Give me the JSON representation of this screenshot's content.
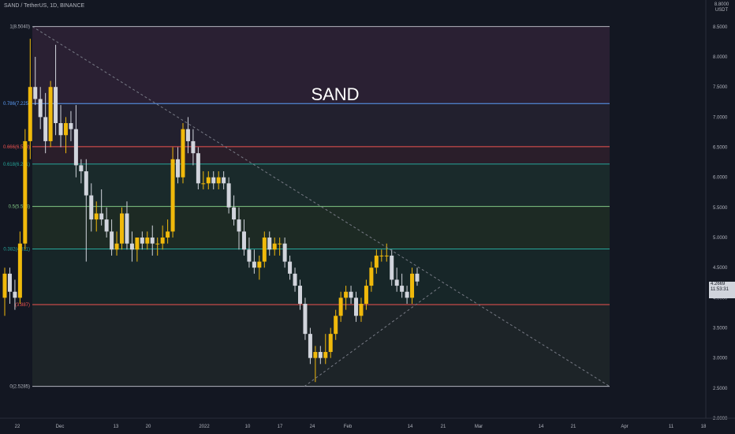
{
  "header": {
    "symbol": "SAND / TetherUS, 1D, BINANCE"
  },
  "annotation": {
    "text": "SAND"
  },
  "price_scale": {
    "currency": "USDT",
    "badge_top": "8.8000",
    "ticks": [
      "8.5000",
      "8.0000",
      "7.5000",
      "7.0000",
      "6.5000",
      "6.0000",
      "5.5000",
      "5.0000",
      "4.5000",
      "4.0000",
      "3.5000",
      "3.0000",
      "2.5000",
      "2.0000"
    ],
    "last_price": "4.2669",
    "countdown": "11:53:31"
  },
  "time_scale": {
    "ticks": [
      "22",
      "Dec",
      "13",
      "20",
      "2022",
      "10",
      "17",
      "24",
      "Feb",
      "14",
      "21",
      "Mar",
      "14",
      "21",
      "Apr",
      "11",
      "18"
    ]
  },
  "fib_levels": [
    {
      "label": "1(8.5040)",
      "value": 8.504,
      "color": "#b2b5be"
    },
    {
      "label": "0.786(7.225)",
      "value": 7.225,
      "color": "#5b9cf6"
    },
    {
      "label": "0.666(6.508)",
      "value": 6.508,
      "color": "#ef5350"
    },
    {
      "label": "0.618(6.221)",
      "value": 6.221,
      "color": "#26a69a"
    },
    {
      "label": "0.5(5.516)",
      "value": 5.516,
      "color": "#81c784"
    },
    {
      "label": "0.382(4.811)",
      "value": 4.811,
      "color": "#26a69a"
    },
    {
      "label": "(3.887)",
      "value": 3.887,
      "color": "#ef5350"
    },
    {
      "label": "0(2.5285)",
      "value": 2.5285,
      "color": "#b2b5be"
    }
  ],
  "colors": {
    "background": "#131722",
    "up_candle": "#f0b90b",
    "down_candle": "#d1d4dc",
    "trendline": "#787b86"
  },
  "chart_data": {
    "type": "candlestick",
    "title": "SAND / TetherUS, 1D, BINANCE",
    "ylim": [
      2.0,
      8.8
    ],
    "y_scale": "linear",
    "candles": [
      {
        "o": 4.0,
        "h": 4.5,
        "l": 3.7,
        "c": 4.4
      },
      {
        "o": 4.4,
        "h": 4.5,
        "l": 3.9,
        "c": 4.1
      },
      {
        "o": 4.1,
        "h": 4.3,
        "l": 3.8,
        "c": 4.0
      },
      {
        "o": 4.0,
        "h": 5.1,
        "l": 3.9,
        "c": 4.9
      },
      {
        "o": 4.9,
        "h": 6.8,
        "l": 4.8,
        "c": 6.6
      },
      {
        "o": 6.6,
        "h": 8.3,
        "l": 6.3,
        "c": 7.5
      },
      {
        "o": 7.5,
        "h": 8.0,
        "l": 7.2,
        "c": 7.3
      },
      {
        "o": 7.3,
        "h": 7.5,
        "l": 6.8,
        "c": 7.0
      },
      {
        "o": 7.0,
        "h": 7.4,
        "l": 6.4,
        "c": 6.6
      },
      {
        "o": 6.6,
        "h": 7.6,
        "l": 6.5,
        "c": 7.5
      },
      {
        "o": 7.5,
        "h": 8.2,
        "l": 6.7,
        "c": 6.9
      },
      {
        "o": 6.9,
        "h": 7.2,
        "l": 6.5,
        "c": 6.7
      },
      {
        "o": 6.7,
        "h": 7.0,
        "l": 6.4,
        "c": 6.9
      },
      {
        "o": 6.9,
        "h": 7.1,
        "l": 6.6,
        "c": 6.8
      },
      {
        "o": 6.8,
        "h": 7.2,
        "l": 6.0,
        "c": 6.2
      },
      {
        "o": 6.2,
        "h": 6.3,
        "l": 5.9,
        "c": 6.1
      },
      {
        "o": 6.1,
        "h": 6.3,
        "l": 4.6,
        "c": 5.7
      },
      {
        "o": 5.7,
        "h": 5.9,
        "l": 5.1,
        "c": 5.3
      },
      {
        "o": 5.3,
        "h": 5.6,
        "l": 5.1,
        "c": 5.4
      },
      {
        "o": 5.4,
        "h": 5.8,
        "l": 5.2,
        "c": 5.3
      },
      {
        "o": 5.3,
        "h": 5.5,
        "l": 5.0,
        "c": 5.1
      },
      {
        "o": 5.1,
        "h": 5.3,
        "l": 4.7,
        "c": 4.8
      },
      {
        "o": 4.8,
        "h": 5.1,
        "l": 4.7,
        "c": 4.9
      },
      {
        "o": 4.9,
        "h": 5.5,
        "l": 4.8,
        "c": 5.4
      },
      {
        "o": 5.4,
        "h": 5.6,
        "l": 4.8,
        "c": 4.9
      },
      {
        "o": 4.9,
        "h": 5.1,
        "l": 4.6,
        "c": 4.8
      },
      {
        "o": 4.8,
        "h": 5.0,
        "l": 4.6,
        "c": 5.0
      },
      {
        "o": 5.0,
        "h": 5.1,
        "l": 4.8,
        "c": 4.9
      },
      {
        "o": 4.9,
        "h": 5.1,
        "l": 4.8,
        "c": 5.0
      },
      {
        "o": 5.0,
        "h": 5.2,
        "l": 4.7,
        "c": 4.9
      },
      {
        "o": 4.9,
        "h": 5.0,
        "l": 4.7,
        "c": 4.9
      },
      {
        "o": 4.9,
        "h": 5.2,
        "l": 4.8,
        "c": 5.0
      },
      {
        "o": 5.0,
        "h": 5.3,
        "l": 4.9,
        "c": 5.1
      },
      {
        "o": 5.1,
        "h": 6.5,
        "l": 5.0,
        "c": 6.3
      },
      {
        "o": 6.3,
        "h": 6.5,
        "l": 5.9,
        "c": 6.0
      },
      {
        "o": 6.0,
        "h": 6.9,
        "l": 5.9,
        "c": 6.8
      },
      {
        "o": 6.8,
        "h": 7.0,
        "l": 6.4,
        "c": 6.6
      },
      {
        "o": 6.6,
        "h": 6.8,
        "l": 6.2,
        "c": 6.4
      },
      {
        "o": 6.4,
        "h": 6.5,
        "l": 5.8,
        "c": 5.9
      },
      {
        "o": 5.9,
        "h": 6.1,
        "l": 5.8,
        "c": 5.9
      },
      {
        "o": 5.9,
        "h": 6.1,
        "l": 5.8,
        "c": 6.0
      },
      {
        "o": 6.0,
        "h": 6.1,
        "l": 5.8,
        "c": 5.9
      },
      {
        "o": 5.9,
        "h": 6.1,
        "l": 5.8,
        "c": 6.0
      },
      {
        "o": 6.0,
        "h": 6.1,
        "l": 5.8,
        "c": 5.9
      },
      {
        "o": 5.9,
        "h": 6.0,
        "l": 5.4,
        "c": 5.5
      },
      {
        "o": 5.5,
        "h": 5.7,
        "l": 5.2,
        "c": 5.3
      },
      {
        "o": 5.3,
        "h": 5.5,
        "l": 4.8,
        "c": 5.1
      },
      {
        "o": 5.1,
        "h": 5.3,
        "l": 4.7,
        "c": 4.8
      },
      {
        "o": 4.8,
        "h": 5.0,
        "l": 4.5,
        "c": 4.6
      },
      {
        "o": 4.6,
        "h": 4.8,
        "l": 4.4,
        "c": 4.5
      },
      {
        "o": 4.5,
        "h": 4.7,
        "l": 4.3,
        "c": 4.6
      },
      {
        "o": 4.6,
        "h": 5.1,
        "l": 4.5,
        "c": 5.0
      },
      {
        "o": 5.0,
        "h": 5.1,
        "l": 4.7,
        "c": 4.8
      },
      {
        "o": 4.8,
        "h": 5.0,
        "l": 4.7,
        "c": 4.9
      },
      {
        "o": 4.9,
        "h": 5.0,
        "l": 4.7,
        "c": 4.9
      },
      {
        "o": 4.9,
        "h": 5.0,
        "l": 4.5,
        "c": 4.6
      },
      {
        "o": 4.6,
        "h": 4.7,
        "l": 4.3,
        "c": 4.4
      },
      {
        "o": 4.4,
        "h": 4.5,
        "l": 4.1,
        "c": 4.2
      },
      {
        "o": 4.2,
        "h": 4.3,
        "l": 3.8,
        "c": 3.9
      },
      {
        "o": 3.9,
        "h": 4.0,
        "l": 3.3,
        "c": 3.4
      },
      {
        "o": 3.4,
        "h": 3.5,
        "l": 2.9,
        "c": 3.0
      },
      {
        "o": 3.0,
        "h": 3.2,
        "l": 2.6,
        "c": 3.1
      },
      {
        "o": 3.1,
        "h": 3.2,
        "l": 2.9,
        "c": 3.0
      },
      {
        "o": 3.0,
        "h": 3.4,
        "l": 2.9,
        "c": 3.1
      },
      {
        "o": 3.1,
        "h": 3.5,
        "l": 3.0,
        "c": 3.4
      },
      {
        "o": 3.4,
        "h": 3.8,
        "l": 3.3,
        "c": 3.7
      },
      {
        "o": 3.7,
        "h": 4.1,
        "l": 3.6,
        "c": 4.0
      },
      {
        "o": 4.0,
        "h": 4.2,
        "l": 3.8,
        "c": 4.1
      },
      {
        "o": 4.1,
        "h": 4.2,
        "l": 3.9,
        "c": 4.0
      },
      {
        "o": 4.0,
        "h": 4.1,
        "l": 3.6,
        "c": 3.7
      },
      {
        "o": 3.7,
        "h": 4.0,
        "l": 3.6,
        "c": 3.9
      },
      {
        "o": 3.9,
        "h": 4.3,
        "l": 3.8,
        "c": 4.2
      },
      {
        "o": 4.2,
        "h": 4.6,
        "l": 4.1,
        "c": 4.5
      },
      {
        "o": 4.5,
        "h": 4.8,
        "l": 4.4,
        "c": 4.7
      },
      {
        "o": 4.7,
        "h": 4.8,
        "l": 4.6,
        "c": 4.7
      },
      {
        "o": 4.7,
        "h": 4.9,
        "l": 4.6,
        "c": 4.7
      },
      {
        "o": 4.7,
        "h": 4.8,
        "l": 4.2,
        "c": 4.3
      },
      {
        "o": 4.3,
        "h": 4.5,
        "l": 4.1,
        "c": 4.2
      },
      {
        "o": 4.2,
        "h": 4.4,
        "l": 4.0,
        "c": 4.1
      },
      {
        "o": 4.1,
        "h": 4.2,
        "l": 3.9,
        "c": 4.0
      },
      {
        "o": 4.0,
        "h": 4.5,
        "l": 3.9,
        "c": 4.4
      },
      {
        "o": 4.4,
        "h": 4.5,
        "l": 4.2,
        "c": 4.27
      }
    ]
  }
}
